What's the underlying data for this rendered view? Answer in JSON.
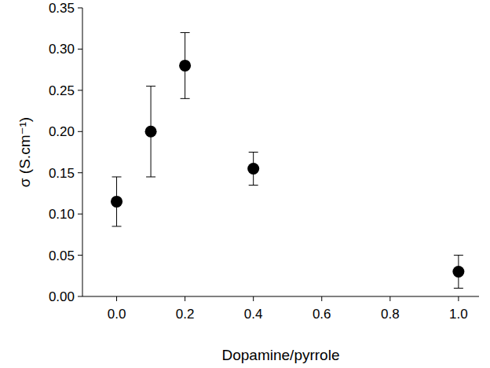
{
  "chart_data": {
    "type": "scatter",
    "x_label": "Dopamine/pyrrole",
    "y_label": "σ (S.cm⁻¹)",
    "x": [
      0.0,
      0.1,
      0.2,
      0.4,
      1.0
    ],
    "values": [
      0.115,
      0.2,
      0.28,
      0.155,
      0.03
    ],
    "errors": [
      0.03,
      0.055,
      0.04,
      0.02,
      0.02
    ],
    "color": "#000000",
    "marker": "circle",
    "xlim": [
      -0.1,
      1.06
    ],
    "xticks": [
      {
        "value": 0,
        "label": "0.0"
      },
      {
        "value": 0.2,
        "label": "0.2"
      },
      {
        "value": 0.4,
        "label": "0.4"
      },
      {
        "value": 0.6,
        "label": "0.6"
      },
      {
        "value": 0.8,
        "label": "0.8"
      },
      {
        "value": 1,
        "label": "1.0"
      }
    ],
    "ylim": [
      0,
      0.35
    ],
    "yticks": [
      {
        "value": 0,
        "label": "0.00"
      },
      {
        "value": 0.05,
        "label": "0.05"
      },
      {
        "value": 0.1,
        "label": "0.10"
      },
      {
        "value": 0.15,
        "label": "0.15"
      },
      {
        "value": 0.2,
        "label": "0.20"
      },
      {
        "value": 0.25,
        "label": "0.25"
      },
      {
        "value": 0.3,
        "label": "0.30"
      },
      {
        "value": 0.35,
        "label": "0.35"
      }
    ],
    "grid": false
  }
}
